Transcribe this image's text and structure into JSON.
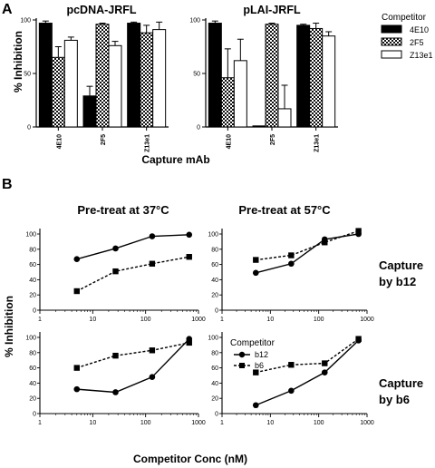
{
  "panel_labels": {
    "a": "A",
    "b": "B"
  },
  "panel_a": {
    "ylabel": "% Inhibition",
    "xlabel": "Capture mAb",
    "legend_title": "Competitor"
  },
  "panel_b": {
    "ylabel": "% Inhibition",
    "xlabel": "Competitor Conc (nM)",
    "col_titles": [
      "Pre-treat at 37°C",
      "Pre-treat at 57°C"
    ],
    "row_labels": [
      [
        "Capture",
        "by b12"
      ],
      [
        "Capture",
        "by b6"
      ]
    ],
    "legend_title": "Competitor"
  },
  "colors": {
    "black": "#000000",
    "white": "#ffffff",
    "checker_dark": "#111111"
  },
  "chart_data": [
    {
      "type": "bar",
      "title": "pcDNA-JRFL",
      "categories": [
        "4E10",
        "2F5",
        "Z13e1"
      ],
      "series": [
        {
          "name": "4E10",
          "fill": "solid-black",
          "values": [
            97,
            29,
            97
          ],
          "errors": [
            2,
            9,
            1
          ]
        },
        {
          "name": "2F5",
          "fill": "checker",
          "values": [
            65,
            96,
            88
          ],
          "errors": [
            10,
            1,
            7
          ]
        },
        {
          "name": "Z13e1",
          "fill": "white",
          "values": [
            81,
            76,
            91
          ],
          "errors": [
            3,
            4,
            7
          ]
        }
      ],
      "ylim": [
        0,
        100
      ],
      "yticks": [
        0,
        50,
        100
      ]
    },
    {
      "type": "bar",
      "title": "pLAI-JRFL",
      "categories": [
        "4E10",
        "2F5",
        "Z13e1"
      ],
      "series": [
        {
          "name": "4E10",
          "fill": "solid-black",
          "values": [
            97,
            1,
            95
          ],
          "errors": [
            2,
            0,
            1
          ]
        },
        {
          "name": "2F5",
          "fill": "checker",
          "values": [
            46,
            96,
            92
          ],
          "errors": [
            27,
            1,
            5
          ]
        },
        {
          "name": "Z13e1",
          "fill": "white",
          "values": [
            62,
            17,
            85
          ],
          "errors": [
            20,
            22,
            4
          ]
        }
      ],
      "ylim": [
        0,
        100
      ],
      "yticks": [
        0,
        50,
        100
      ]
    },
    {
      "type": "line",
      "title": "Pre-treat at 37°C",
      "row": "Capture by b12",
      "x": [
        5,
        27,
        133,
        667
      ],
      "xscale": "log",
      "xlim": [
        1,
        1000
      ],
      "ylim": [
        0,
        100
      ],
      "series": [
        {
          "name": "b12",
          "marker": "circle",
          "line": "solid",
          "values": [
            67,
            81,
            97,
            99
          ]
        },
        {
          "name": "b6",
          "marker": "square",
          "line": "dashed",
          "values": [
            25,
            51,
            61,
            70
          ]
        }
      ]
    },
    {
      "type": "line",
      "title": "Pre-treat at 57°C",
      "row": "Capture by b12",
      "x": [
        5,
        27,
        133,
        667
      ],
      "xscale": "log",
      "xlim": [
        1,
        1000
      ],
      "ylim": [
        0,
        100
      ],
      "series": [
        {
          "name": "b12",
          "marker": "circle",
          "line": "solid",
          "values": [
            49,
            61,
            93,
            100
          ]
        },
        {
          "name": "b6",
          "marker": "square",
          "line": "dashed",
          "values": [
            66,
            72,
            89,
            104
          ]
        }
      ]
    },
    {
      "type": "line",
      "title": "Pre-treat at 37°C",
      "row": "Capture by b6",
      "x": [
        5,
        27,
        133,
        667
      ],
      "xscale": "log",
      "xlim": [
        1,
        1000
      ],
      "ylim": [
        0,
        100
      ],
      "series": [
        {
          "name": "b12",
          "marker": "circle",
          "line": "solid",
          "values": [
            32,
            28,
            48,
            98
          ]
        },
        {
          "name": "b6",
          "marker": "square",
          "line": "dashed",
          "values": [
            60,
            76,
            83,
            93
          ]
        }
      ]
    },
    {
      "type": "line",
      "title": "Pre-treat at 57°C",
      "row": "Capture by b6",
      "x": [
        5,
        27,
        133,
        667
      ],
      "xscale": "log",
      "xlim": [
        1,
        1000
      ],
      "ylim": [
        0,
        100
      ],
      "series": [
        {
          "name": "b12",
          "marker": "circle",
          "line": "solid",
          "values": [
            11,
            30,
            54,
            96
          ]
        },
        {
          "name": "b6",
          "marker": "square",
          "line": "dashed",
          "values": [
            54,
            64,
            66,
            98
          ]
        }
      ]
    }
  ]
}
